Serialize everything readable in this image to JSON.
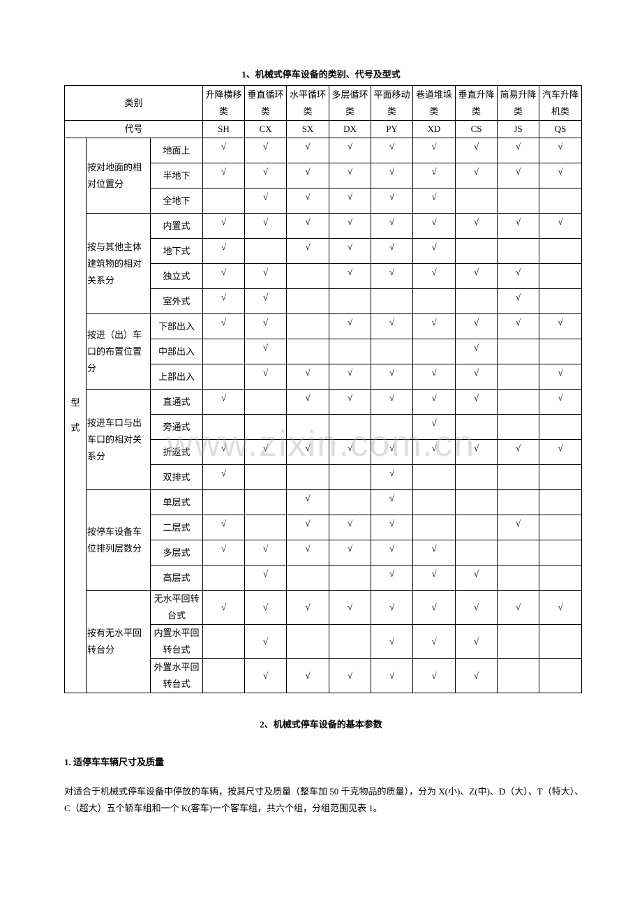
{
  "section1_title": "1、机械式停车设备的类别、代号及型式",
  "table": {
    "category_label": "类别",
    "code_label": "代号",
    "form_label": "型式",
    "check_mark": "√",
    "columns": [
      {
        "name": "升降横移类",
        "code": "SH"
      },
      {
        "name": "垂直循环类",
        "code": "CX"
      },
      {
        "name": "水平循环类",
        "code": "SX"
      },
      {
        "name": "多层循环类",
        "code": "DX"
      },
      {
        "name": "平面移动类",
        "code": "PY"
      },
      {
        "name": "巷道堆垛类",
        "code": "XD"
      },
      {
        "name": "垂直升降类",
        "code": "CS"
      },
      {
        "name": "简易升降类",
        "code": "JS"
      },
      {
        "name": "汽车升降机类",
        "code": "QS"
      }
    ],
    "groups": [
      {
        "label": "按对地面的相对位置分",
        "rows": [
          {
            "label": "地面上",
            "marks": [
              1,
              1,
              1,
              1,
              1,
              1,
              1,
              1,
              1
            ]
          },
          {
            "label": "半地下",
            "marks": [
              1,
              1,
              1,
              1,
              1,
              1,
              1,
              1,
              1
            ]
          },
          {
            "label": "全地下",
            "marks": [
              0,
              1,
              1,
              1,
              1,
              1,
              0,
              0,
              0
            ]
          }
        ]
      },
      {
        "label": "按与其他主体建筑物的相对关系分",
        "rows": [
          {
            "label": "内置式",
            "marks": [
              1,
              1,
              1,
              1,
              1,
              1,
              1,
              1,
              1
            ]
          },
          {
            "label": "地下式",
            "marks": [
              1,
              0,
              1,
              1,
              1,
              1,
              0,
              0,
              0
            ]
          },
          {
            "label": "独立式",
            "marks": [
              1,
              1,
              0,
              1,
              1,
              1,
              1,
              1,
              0
            ]
          },
          {
            "label": "室外式",
            "marks": [
              1,
              1,
              0,
              0,
              0,
              0,
              0,
              1,
              0
            ]
          }
        ]
      },
      {
        "label": "按进（出）车口的布置位置分",
        "rows": [
          {
            "label": "下部出入",
            "marks": [
              1,
              1,
              0,
              1,
              1,
              1,
              1,
              1,
              1
            ]
          },
          {
            "label": "中部出入",
            "marks": [
              0,
              1,
              0,
              0,
              0,
              0,
              1,
              0,
              0
            ]
          },
          {
            "label": "上部出入",
            "marks": [
              0,
              1,
              1,
              1,
              1,
              1,
              1,
              0,
              1
            ]
          }
        ]
      },
      {
        "label": "按进车口与出车口的相对关系分",
        "rows": [
          {
            "label": "直通式",
            "marks": [
              1,
              0,
              1,
              1,
              1,
              1,
              1,
              0,
              1
            ]
          },
          {
            "label": "旁通式",
            "marks": [
              0,
              0,
              0,
              0,
              0,
              1,
              0,
              0,
              0
            ]
          },
          {
            "label": "折返式",
            "marks": [
              1,
              1,
              1,
              1,
              1,
              1,
              1,
              1,
              1
            ]
          },
          {
            "label": "双排式",
            "marks": [
              1,
              0,
              0,
              0,
              1,
              0,
              0,
              0,
              0
            ]
          }
        ]
      },
      {
        "label": "按停车设备车位排列层数分",
        "rows": [
          {
            "label": "单层式",
            "marks": [
              0,
              0,
              1,
              0,
              1,
              0,
              0,
              0,
              0
            ]
          },
          {
            "label": "二层式",
            "marks": [
              1,
              0,
              1,
              1,
              1,
              0,
              0,
              1,
              0
            ]
          },
          {
            "label": "多层式",
            "marks": [
              1,
              1,
              1,
              1,
              1,
              1,
              0,
              0,
              0
            ]
          },
          {
            "label": "高层式",
            "marks": [
              0,
              1,
              0,
              0,
              1,
              1,
              1,
              0,
              0
            ]
          }
        ]
      },
      {
        "label": "按有无水平回转台分",
        "rows": [
          {
            "label": "无水平回转台式",
            "marks": [
              1,
              1,
              1,
              1,
              1,
              1,
              1,
              1,
              1
            ]
          },
          {
            "label": "内置水平回转台式",
            "marks": [
              0,
              1,
              0,
              0,
              1,
              1,
              1,
              0,
              0
            ]
          },
          {
            "label": "外置水平回转台式",
            "marks": [
              0,
              1,
              1,
              1,
              1,
              1,
              1,
              0,
              0
            ]
          }
        ]
      }
    ]
  },
  "watermark": "www.zixin.com.cn",
  "section2_title": "2、机械式停车设备的基本参数",
  "subheading": "1. 适停车车辆尺寸及质量",
  "paragraph": "对适合于机械式停车设备中停放的车辆，按其尺寸及质量（整车加 50 千克物品的质量），分为 X(小)、Z(中)、D（大）、T（特大）、C（超大）五个轿车组和一个 K(客车)一个客车组，共六个组，分组范围见表 1。"
}
